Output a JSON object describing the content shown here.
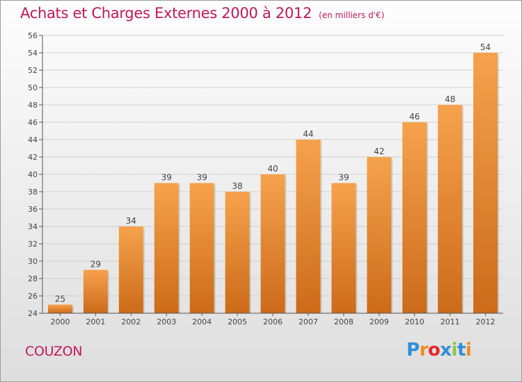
{
  "header": {
    "title": "Achats et Charges Externes 2000 à 2012",
    "subtitle": "(en milliers d'€)"
  },
  "footer": {
    "commune": "COUZON",
    "brand": "Proxiti",
    "brand_colors": [
      "#2d8fd8",
      "#f28a1e",
      "#e8262b",
      "#2d8fd8",
      "#8cc63f",
      "#2d8fd8",
      "#f28a1e"
    ]
  },
  "colors": {
    "title": "#c0185a",
    "bar_top": "#f6a24c",
    "bar_bottom": "#cc6b19",
    "grid": "#d0d0d0",
    "axis": "#555555",
    "text": "#444444"
  },
  "chart_data": {
    "type": "bar",
    "categories": [
      "2000",
      "2001",
      "2002",
      "2003",
      "2004",
      "2005",
      "2006",
      "2007",
      "2008",
      "2009",
      "2010",
      "2011",
      "2012"
    ],
    "values": [
      25,
      29,
      34,
      39,
      39,
      38,
      40,
      44,
      39,
      42,
      46,
      48,
      54
    ],
    "ylim": [
      24,
      56
    ],
    "yticks": [
      24,
      26,
      28,
      30,
      32,
      34,
      36,
      38,
      40,
      42,
      44,
      46,
      48,
      50,
      52,
      54,
      56
    ],
    "grid": true,
    "data_labels": true
  }
}
